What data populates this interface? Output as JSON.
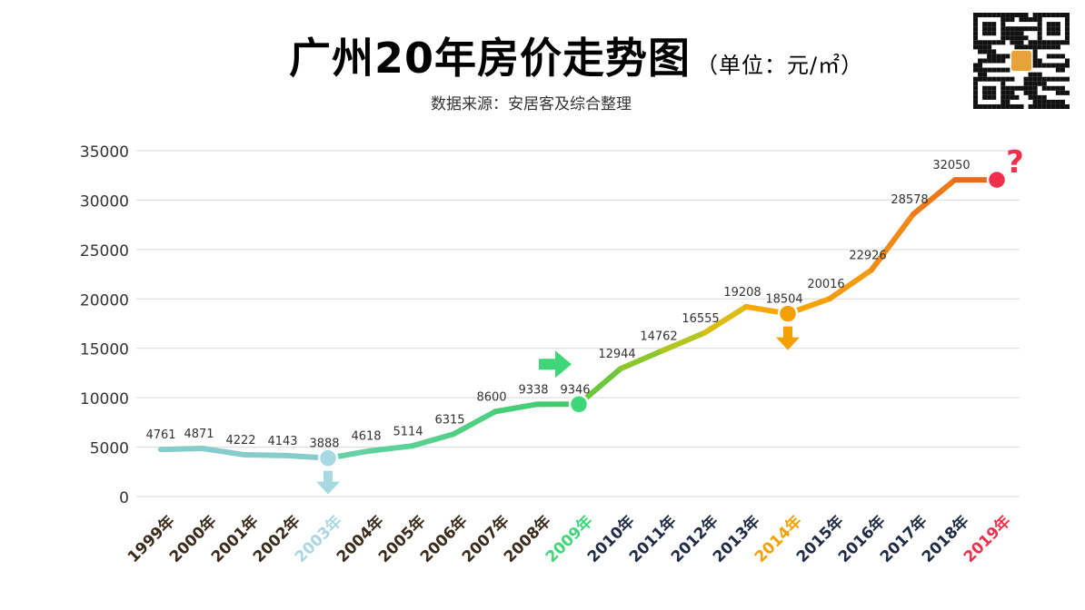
{
  "chart_data": {
    "type": "line",
    "title": "广州20年房价走势图",
    "unit": "（单位：元/㎡）",
    "subtitle": "数据来源：安居客及综合整理",
    "categories": [
      "1999年",
      "2000年",
      "2001年",
      "2002年",
      "2003年",
      "2004年",
      "2005年",
      "2006年",
      "2007年",
      "2008年",
      "2009年",
      "2010年",
      "2011年",
      "2012年",
      "2013年",
      "2014年",
      "2015年",
      "2016年",
      "2017年",
      "2018年",
      "2019年"
    ],
    "values": [
      4761,
      4871,
      4222,
      4143,
      3888,
      4618,
      5114,
      6315,
      8600,
      9338,
      9346,
      12944,
      14762,
      16555,
      19208,
      18504,
      20016,
      22926,
      28578,
      32050,
      32050
    ],
    "data_labels": [
      "4761",
      "4871",
      "4222",
      "4143",
      "3888",
      "4618",
      "5114",
      "6315",
      "8600",
      "9338",
      "9346",
      "12944",
      "14762",
      "16555",
      "19208",
      "18504",
      "20016",
      "22926",
      "28578",
      "32050",
      ""
    ],
    "yticks": [
      "0",
      "5000",
      "10000",
      "15000",
      "20000",
      "25000",
      "30000",
      "35000"
    ],
    "ylim": [
      0,
      35000
    ],
    "grid": true,
    "highlights": [
      {
        "year": "2003年",
        "color": "#a8d8e2",
        "marker": "arrow-down"
      },
      {
        "year": "2009年",
        "color": "#3fd67a",
        "marker": "arrow-right"
      },
      {
        "year": "2014年",
        "color": "#f5a000",
        "marker": "arrow-down"
      },
      {
        "year": "2019年",
        "color": "#f0304a",
        "marker": "question-mark",
        "annotation": "?"
      }
    ]
  }
}
